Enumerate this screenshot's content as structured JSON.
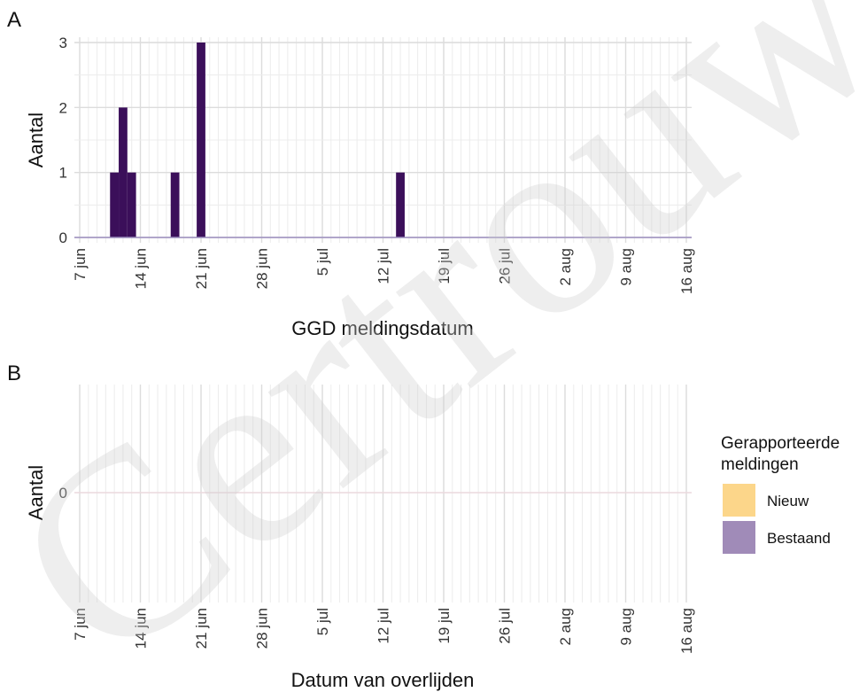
{
  "chart_data": [
    {
      "panel": "A",
      "type": "bar",
      "xlabel": "GGD meldingsdatum",
      "ylabel": "Aantal",
      "x_ticks": [
        "7 jun",
        "14 jun",
        "21 jun",
        "28 jun",
        "5 jul",
        "12 jul",
        "19 jul",
        "26 jul",
        "2 aug",
        "9 aug",
        "16 aug"
      ],
      "x_range": [
        "2020-06-07",
        "2020-08-16"
      ],
      "y_ticks": [
        0,
        1,
        2,
        3
      ],
      "ylim": [
        0,
        3
      ],
      "grid": true,
      "series": [
        {
          "color": "#3b0f5a",
          "points": [
            {
              "x": "2020-06-11",
              "y": 1
            },
            {
              "x": "2020-06-12",
              "y": 2
            },
            {
              "x": "2020-06-13",
              "y": 1
            },
            {
              "x": "2020-06-18",
              "y": 1
            },
            {
              "x": "2020-06-21",
              "y": 3
            },
            {
              "x": "2020-07-14",
              "y": 1
            }
          ]
        }
      ]
    },
    {
      "panel": "B",
      "type": "bar",
      "xlabel": "Datum van overlijden",
      "ylabel": "Aantal",
      "x_ticks": [
        "7 jun",
        "14 jun",
        "21 jun",
        "28 jun",
        "5 jul",
        "12 jul",
        "19 jul",
        "26 jul",
        "2 aug",
        "9 aug",
        "16 aug"
      ],
      "x_range": [
        "2020-06-07",
        "2020-08-16"
      ],
      "y_ticks": [
        0
      ],
      "grid": true,
      "legend": {
        "title": "Gerapporteerde meldingen",
        "placement": "right",
        "entries": [
          {
            "label": "Nieuw",
            "color": "#fcd68a"
          },
          {
            "label": "Bestaand",
            "color": "#a08bb8"
          }
        ]
      },
      "series": []
    }
  ],
  "panel_a": {
    "tag": "A"
  },
  "panel_b": {
    "tag": "B"
  },
  "legend": {
    "title_line1": "Gerapporteerde",
    "title_line2": "meldingen"
  },
  "watermark": {
    "text": "Certrouwel."
  }
}
